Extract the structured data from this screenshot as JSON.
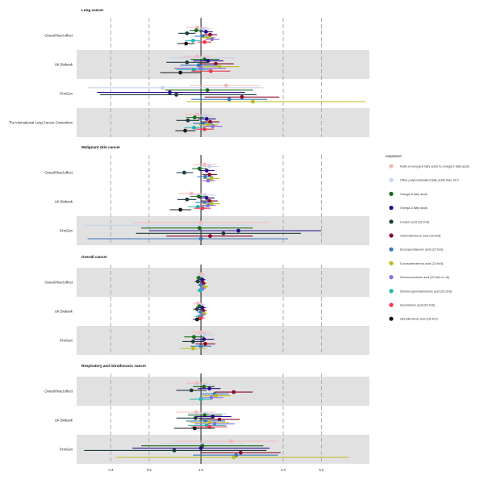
{
  "chart_data": {
    "type": "forest",
    "xscale": "log",
    "xlim": [
      0.19,
      9.5
    ],
    "x_ticks": [
      0.3,
      0.5,
      1.0,
      3.0,
      5.0
    ],
    "x_tick_labels": [
      "0.3",
      "0.5",
      "1.0",
      "3.0",
      "5.0"
    ],
    "reference_line": 1.0,
    "grid": "dashed vertical lines at ticks",
    "legend": {
      "title": "exposure",
      "placement": "right",
      "entries": [
        {
          "label": "Ratio of omega-6 fatty acids to omega-3 fatty acids",
          "color": "#f4b8b8"
        },
        {
          "label": "Other polyunsaturated fatty acids than 18:2",
          "color": "#c6d3ea"
        },
        {
          "label": "Omega-6 fatty acids",
          "color": "#1a6a1a"
        },
        {
          "label": "Omega-3 fatty acids",
          "color": "#2a0a8c"
        },
        {
          "label": "Linoleic acid (18:2n6)",
          "color": "#1c3b40"
        },
        {
          "label": "Gammalinolenic acid (18:3n6)",
          "color": "#8b0a2a"
        },
        {
          "label": "Eicosapentaenoic acid (22:5n3)",
          "color": "#3a78c0"
        },
        {
          "label": "Docosahexaenoic acid (22:6n3)",
          "color": "#bcbc22"
        },
        {
          "label": "Dihomo-linolenic acid (20:3n3 or n6)",
          "color": "#8a6fe0"
        },
        {
          "label": "Dihomo-gammalinolenic acid (20:3n6)",
          "color": "#21b5b0"
        },
        {
          "label": "Arachidonic acid (20:4n6)",
          "color": "#f0384e"
        },
        {
          "label": "Alphalinolenic acid (18:3n3)",
          "color": "#1a1a1a"
        }
      ]
    },
    "panels": [
      {
        "title": "Lung cancer",
        "rows": [
          {
            "label": "Overall fixed effect",
            "shaded": false,
            "estimates": [
              {
                "or": 0.95,
                "lo": 0.82,
                "hi": 1.1
              },
              {
                "or": 1.04,
                "lo": 0.94,
                "hi": 1.15
              },
              {
                "or": 0.94,
                "lo": 0.86,
                "hi": 1.03
              },
              {
                "or": 1.07,
                "lo": 0.98,
                "hi": 1.17
              },
              {
                "or": 0.83,
                "lo": 0.74,
                "hi": 0.93
              },
              {
                "or": 1.13,
                "lo": 1.03,
                "hi": 1.24
              },
              {
                "or": 1.02,
                "lo": 0.92,
                "hi": 1.13
              },
              {
                "or": 1.1,
                "lo": 1.0,
                "hi": 1.21
              },
              {
                "or": 1.16,
                "lo": 1.06,
                "hi": 1.28
              },
              {
                "or": 0.9,
                "lo": 0.81,
                "hi": 1.0
              },
              {
                "or": 1.05,
                "lo": 0.96,
                "hi": 1.15
              },
              {
                "or": 0.82,
                "lo": 0.73,
                "hi": 0.92
              }
            ]
          },
          {
            "label": "UK Biobank",
            "shaded": true,
            "estimates": [
              {
                "or": 0.95,
                "lo": 0.78,
                "hi": 1.15
              },
              {
                "or": 1.02,
                "lo": 0.66,
                "hi": 1.58
              },
              {
                "or": 1.05,
                "lo": 0.87,
                "hi": 1.28
              },
              {
                "or": 1.1,
                "lo": 0.9,
                "hi": 1.35
              },
              {
                "or": 0.83,
                "lo": 0.63,
                "hi": 1.1
              },
              {
                "or": 1.22,
                "lo": 0.96,
                "hi": 1.55
              },
              {
                "or": 0.97,
                "lo": 0.76,
                "hi": 1.24
              },
              {
                "or": 1.28,
                "lo": 0.98,
                "hi": 1.67
              },
              {
                "or": 1.0,
                "lo": 0.7,
                "hi": 1.4
              },
              {
                "or": 0.91,
                "lo": 0.72,
                "hi": 1.15
              },
              {
                "or": 1.14,
                "lo": 0.88,
                "hi": 1.48
              },
              {
                "or": 0.76,
                "lo": 0.58,
                "hi": 1.0
              }
            ]
          },
          {
            "label": "FinnGen",
            "shaded": false,
            "estimates": [
              {
                "or": 1.4,
                "lo": 0.86,
                "hi": 2.2
              },
              {
                "or": 0.6,
                "lo": 0.22,
                "hi": 2.3
              },
              {
                "or": 1.09,
                "lo": 0.62,
                "hi": 2.0
              },
              {
                "or": 0.66,
                "lo": 0.25,
                "hi": 1.8
              },
              {
                "or": 0.72,
                "lo": 0.26,
                "hi": 2.1
              },
              {
                "or": 1.73,
                "lo": 1.05,
                "hi": 2.85
              },
              {
                "or": 1.46,
                "lo": 0.88,
                "hi": 2.42
              },
              {
                "or": 2.0,
                "lo": 0.83,
                "hi": 9.0
              }
            ]
          },
          {
            "label": "The International Lung Cancer Consortium",
            "shaded": true,
            "estimates": [
              {
                "or": 0.95,
                "lo": 0.81,
                "hi": 1.12
              },
              {
                "or": 1.05,
                "lo": 0.92,
                "hi": 1.2
              },
              {
                "or": 0.92,
                "lo": 0.82,
                "hi": 1.04
              },
              {
                "or": 1.08,
                "lo": 0.96,
                "hi": 1.22
              },
              {
                "or": 0.84,
                "lo": 0.72,
                "hi": 0.98
              },
              {
                "or": 1.13,
                "lo": 1.0,
                "hi": 1.28
              },
              {
                "or": 1.03,
                "lo": 0.9,
                "hi": 1.17
              },
              {
                "or": 1.1,
                "lo": 0.97,
                "hi": 1.25
              },
              {
                "or": 1.17,
                "lo": 1.03,
                "hi": 1.33
              },
              {
                "or": 0.91,
                "lo": 0.8,
                "hi": 1.04
              },
              {
                "or": 1.05,
                "lo": 0.93,
                "hi": 1.19
              },
              {
                "or": 0.81,
                "lo": 0.71,
                "hi": 0.93
              }
            ]
          }
        ]
      },
      {
        "title": "Malignant skin cancer",
        "rows": [
          {
            "label": "Overall fixed effect",
            "shaded": false,
            "estimates": [
              {
                "or": 1.05,
                "lo": 0.9,
                "hi": 1.22
              },
              {
                "or": 1.12,
                "lo": 0.98,
                "hi": 1.28
              },
              {
                "or": 0.98,
                "lo": 0.89,
                "hi": 1.08
              },
              {
                "or": 1.08,
                "lo": 0.98,
                "hi": 1.2
              },
              {
                "or": 0.8,
                "lo": 0.72,
                "hi": 0.9
              },
              {
                "or": 1.12,
                "lo": 1.02,
                "hi": 1.24
              },
              {
                "or": 1.06,
                "lo": 0.95,
                "hi": 1.18
              },
              {
                "or": 1.15,
                "lo": 1.03,
                "hi": 1.28
              },
              {
                "or": 1.1,
                "lo": 1.0,
                "hi": 1.21
              }
            ]
          },
          {
            "label": "UK Biobank",
            "shaded": false,
            "estimates": [
              {
                "or": 0.88,
                "lo": 0.74,
                "hi": 1.05
              },
              {
                "or": 1.06,
                "lo": 0.92,
                "hi": 1.22
              },
              {
                "or": 0.97,
                "lo": 0.87,
                "hi": 1.08
              },
              {
                "or": 1.08,
                "lo": 0.97,
                "hi": 1.2
              },
              {
                "or": 0.83,
                "lo": 0.73,
                "hi": 0.94
              },
              {
                "or": 1.12,
                "lo": 1.0,
                "hi": 1.25
              },
              {
                "or": 1.05,
                "lo": 0.93,
                "hi": 1.18
              },
              {
                "or": 1.15,
                "lo": 1.02,
                "hi": 1.29
              },
              {
                "or": 1.1,
                "lo": 0.99,
                "hi": 1.22
              },
              {
                "or": 0.96,
                "lo": 0.84,
                "hi": 1.09
              },
              {
                "or": 1.02,
                "lo": 0.91,
                "hi": 1.14
              },
              {
                "or": 0.76,
                "lo": 0.66,
                "hi": 0.88
              }
            ]
          },
          {
            "label": "FinnGen",
            "shaded": true,
            "estimates": [
              {
                "or": 1.0,
                "lo": 0.4,
                "hi": 2.5
              },
              {
                "or": 1.0,
                "lo": 0.21,
                "hi": 2.1
              },
              {
                "or": 0.98,
                "lo": 0.45,
                "hi": 2.0
              },
              {
                "or": 1.65,
                "lo": 0.5,
                "hi": 5.0
              },
              {
                "or": 1.35,
                "lo": 0.42,
                "hi": 3.8
              },
              {
                "or": 1.13,
                "lo": 0.63,
                "hi": 2.0
              },
              {
                "or": 1.0,
                "lo": 0.22,
                "hi": 3.2
              }
            ]
          }
        ]
      },
      {
        "title": "Overall cancer",
        "rows": [
          {
            "label": "Overall fixed effect",
            "shaded": true,
            "estimates": [
              {
                "or": 1.0,
                "lo": 0.95,
                "hi": 1.05
              },
              {
                "or": 1.01,
                "lo": 0.97,
                "hi": 1.05
              },
              {
                "or": 0.97,
                "lo": 0.94,
                "hi": 1.01
              },
              {
                "or": 1.02,
                "lo": 0.98,
                "hi": 1.06
              },
              {
                "or": 0.96,
                "lo": 0.92,
                "hi": 1.0
              },
              {
                "or": 1.03,
                "lo": 0.99,
                "hi": 1.07
              },
              {
                "or": 1.0,
                "lo": 0.96,
                "hi": 1.04
              },
              {
                "or": 1.05,
                "lo": 1.0,
                "hi": 1.1
              },
              {
                "or": 1.02,
                "lo": 0.98,
                "hi": 1.06
              },
              {
                "or": 0.99,
                "lo": 0.95,
                "hi": 1.03
              }
            ]
          },
          {
            "label": "UK Biobank",
            "shaded": false,
            "estimates": [
              {
                "or": 0.96,
                "lo": 0.9,
                "hi": 1.02
              },
              {
                "or": 1.01,
                "lo": 0.96,
                "hi": 1.06
              },
              {
                "or": 0.98,
                "lo": 0.94,
                "hi": 1.02
              },
              {
                "or": 1.02,
                "lo": 0.97,
                "hi": 1.07
              },
              {
                "or": 0.95,
                "lo": 0.9,
                "hi": 1.0
              },
              {
                "or": 1.03,
                "lo": 0.98,
                "hi": 1.08
              },
              {
                "or": 1.0,
                "lo": 0.95,
                "hi": 1.05
              },
              {
                "or": 1.04,
                "lo": 0.99,
                "hi": 1.09
              },
              {
                "or": 1.01,
                "lo": 0.96,
                "hi": 1.06
              },
              {
                "or": 0.98,
                "lo": 0.93,
                "hi": 1.03
              },
              {
                "or": 1.0,
                "lo": 0.95,
                "hi": 1.05
              },
              {
                "or": 0.95,
                "lo": 0.9,
                "hi": 1.0
              }
            ]
          },
          {
            "label": "FinnGen",
            "shaded": true,
            "estimates": [
              {
                "or": 1.0,
                "lo": 0.88,
                "hi": 1.15
              },
              {
                "or": 1.05,
                "lo": 0.92,
                "hi": 1.2
              },
              {
                "or": 0.91,
                "lo": 0.8,
                "hi": 1.04
              },
              {
                "or": 1.04,
                "lo": 0.91,
                "hi": 1.19
              },
              {
                "or": 0.9,
                "lo": 0.78,
                "hi": 1.04
              },
              {
                "or": 1.06,
                "lo": 0.93,
                "hi": 1.21
              },
              {
                "or": 1.0,
                "lo": 0.87,
                "hi": 1.15
              },
              {
                "or": 0.9,
                "lo": 0.76,
                "hi": 1.07
              }
            ]
          }
        ]
      },
      {
        "title": "Respiratory and intrathoracic cancer",
        "rows": [
          {
            "label": "Overall fixed effect",
            "shaded": true,
            "estimates": [
              {
                "or": 0.95,
                "lo": 0.82,
                "hi": 1.1
              },
              {
                "or": 1.05,
                "lo": 0.9,
                "hi": 1.22
              },
              {
                "or": 1.04,
                "lo": 0.9,
                "hi": 1.2
              },
              {
                "or": 1.12,
                "lo": 0.96,
                "hi": 1.3
              },
              {
                "or": 0.88,
                "lo": 0.72,
                "hi": 1.08
              },
              {
                "or": 1.55,
                "lo": 1.2,
                "hi": 2.0
              },
              {
                "or": 1.2,
                "lo": 1.0,
                "hi": 1.45
              },
              {
                "or": 1.22,
                "lo": 1.02,
                "hi": 1.48
              },
              {
                "or": 1.15,
                "lo": 0.98,
                "hi": 1.35
              },
              {
                "or": 1.0,
                "lo": 0.86,
                "hi": 1.16
              }
            ]
          },
          {
            "label": "UK Biobank",
            "shaded": false,
            "estimates": [
              {
                "or": 0.94,
                "lo": 0.72,
                "hi": 1.22
              },
              {
                "or": 1.08,
                "lo": 0.84,
                "hi": 1.4
              },
              {
                "or": 1.05,
                "lo": 0.84,
                "hi": 1.32
              },
              {
                "or": 1.17,
                "lo": 0.92,
                "hi": 1.5
              },
              {
                "or": 0.93,
                "lo": 0.72,
                "hi": 1.2
              },
              {
                "or": 1.28,
                "lo": 0.98,
                "hi": 1.68
              },
              {
                "or": 1.06,
                "lo": 0.82,
                "hi": 1.38
              },
              {
                "or": 1.12,
                "lo": 0.86,
                "hi": 1.46
              },
              {
                "or": 1.2,
                "lo": 0.92,
                "hi": 1.57
              },
              {
                "or": 1.08,
                "lo": 0.84,
                "hi": 1.4
              },
              {
                "or": 1.12,
                "lo": 0.88,
                "hi": 1.42
              },
              {
                "or": 0.92,
                "lo": 0.7,
                "hi": 1.2
              }
            ]
          },
          {
            "label": "FinnGen",
            "shaded": true,
            "estimates": [
              {
                "or": 1.5,
                "lo": 0.7,
                "hi": 2.8
              },
              {
                "or": 1.02,
                "lo": 0.58,
                "hi": 1.8
              },
              {
                "or": 1.02,
                "lo": 0.45,
                "hi": 2.3
              },
              {
                "or": 1.0,
                "lo": 0.4,
                "hi": 2.5
              },
              {
                "or": 0.7,
                "lo": 0.21,
                "hi": 2.4
              },
              {
                "or": 1.7,
                "lo": 1.0,
                "hi": 2.9
              },
              {
                "or": 1.6,
                "lo": 0.9,
                "hi": 2.8
              },
              {
                "or": 1.55,
                "lo": 0.32,
                "hi": 7.2
              }
            ]
          }
        ]
      }
    ]
  }
}
